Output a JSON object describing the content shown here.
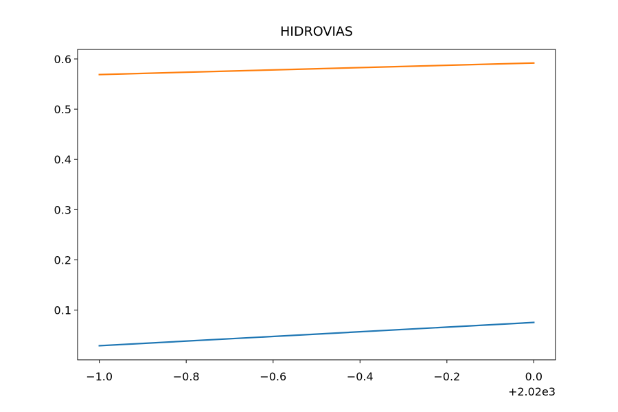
{
  "chart_data": {
    "type": "line",
    "title": "HIDROVIAS",
    "x": [
      2019,
      2020
    ],
    "series": [
      {
        "color": "#1f77b4",
        "values": [
          0.029,
          0.0754
        ]
      },
      {
        "color": "#ff7f0e",
        "values": [
          0.569,
          0.592
        ]
      }
    ],
    "xlim": [
      2018.95,
      2020.05
    ],
    "xticks": [
      {
        "value": 2019,
        "label": "−1.0"
      },
      {
        "value": 2019.2,
        "label": "−0.8"
      },
      {
        "value": 2019.4,
        "label": "−0.6"
      },
      {
        "value": 2019.6,
        "label": "−0.4"
      },
      {
        "value": 2019.8,
        "label": "−0.2"
      },
      {
        "value": 2020,
        "label": "0.0"
      }
    ],
    "x_offset_label": "+2.02e3",
    "ylim": [
      0.001,
      0.619
    ],
    "yticks": [
      0.1,
      0.2,
      0.3,
      0.4,
      0.5,
      0.6
    ],
    "grid": false
  }
}
